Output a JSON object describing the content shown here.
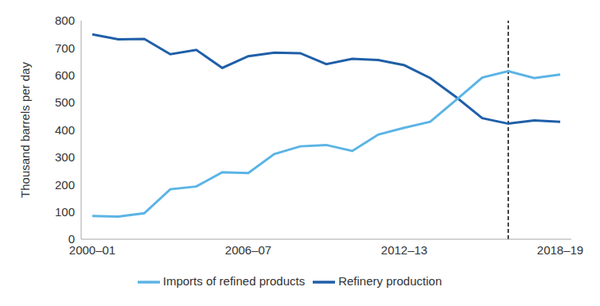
{
  "chart_data": {
    "type": "line",
    "categories": [
      "2000–01",
      null,
      null,
      null,
      null,
      null,
      "2006–07",
      null,
      null,
      null,
      null,
      null,
      "2012–13",
      null,
      null,
      null,
      null,
      null,
      "2018–19"
    ],
    "series": [
      {
        "name": "Refinery production",
        "color": "#1f5fa8",
        "values": [
          750,
          732,
          733,
          677,
          693,
          627,
          670,
          683,
          681,
          641,
          660,
          656,
          637,
          590,
          520,
          443,
          423,
          435,
          430
        ]
      },
      {
        "name": "Imports of refined products",
        "color": "#5bb4e5",
        "values": [
          85,
          83,
          95,
          183,
          193,
          245,
          242,
          312,
          340,
          345,
          323,
          383,
          408,
          430,
          510,
          592,
          615,
          590,
          603
        ]
      }
    ],
    "ylim": [
      0,
      800
    ],
    "yticks": [
      0,
      100,
      200,
      300,
      400,
      500,
      600,
      700,
      800
    ],
    "y_label": "Thousand barrels per day",
    "grid": false,
    "legend": "bottom",
    "reference_lines": [
      {
        "x": 16,
        "line_style": "dashed",
        "color": "#000000"
      }
    ]
  }
}
